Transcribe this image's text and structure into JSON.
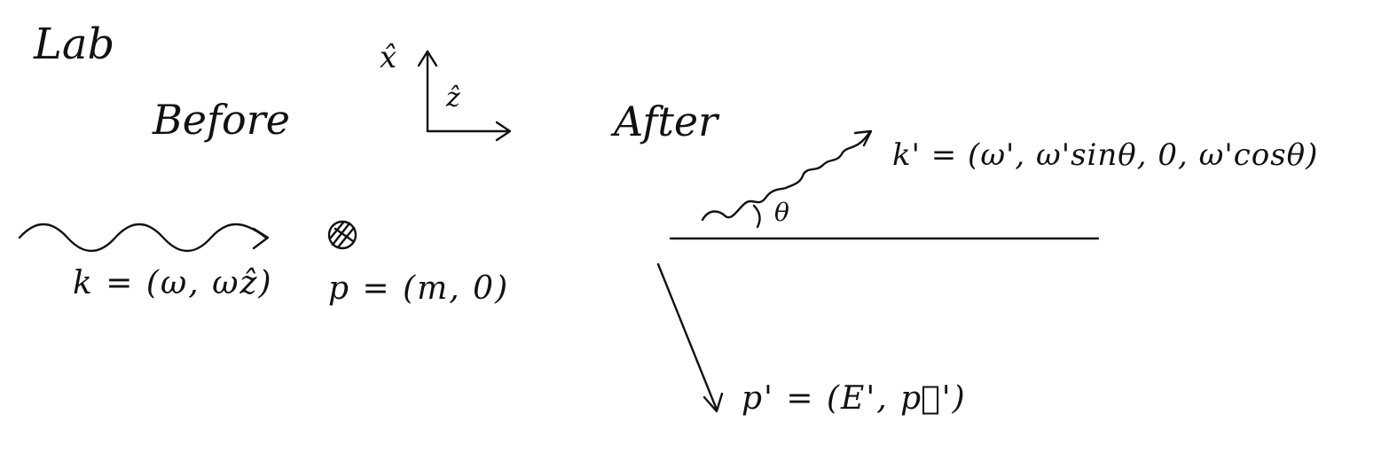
{
  "frame_label": "Lab",
  "before": {
    "heading": "Before",
    "photon_label": "k = (ω, ωẑ)",
    "target_label": "p = (m, 0)"
  },
  "after": {
    "heading": "After",
    "scattered_photon_label": "k' = (ω', ω'sinθ, 0, ω'cosθ)",
    "angle_label": "θ",
    "recoil_label": "p' = (E', p⃗')"
  },
  "axes": {
    "x_label": "x̂",
    "z_label": "ẑ"
  },
  "colors": {
    "ink": "#111111",
    "background": "#ffffff"
  }
}
